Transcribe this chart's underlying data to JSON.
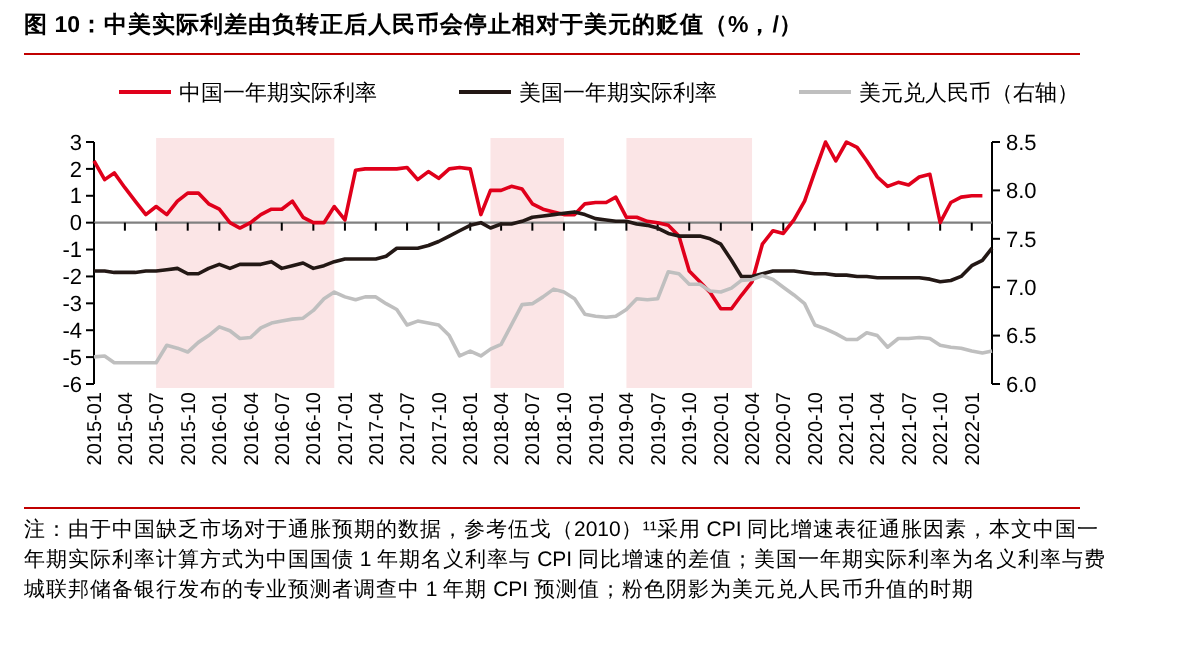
{
  "chart_data": {
    "type": "line",
    "title": "图 10：中美实际利差由负转正后人民币会停止相对于美元的贬值（%，/）",
    "x": [
      "2015-01",
      "2015-02",
      "2015-03",
      "2015-04",
      "2015-05",
      "2015-06",
      "2015-07",
      "2015-08",
      "2015-09",
      "2015-10",
      "2015-11",
      "2015-12",
      "2016-01",
      "2016-02",
      "2016-03",
      "2016-04",
      "2016-05",
      "2016-06",
      "2016-07",
      "2016-08",
      "2016-09",
      "2016-10",
      "2016-11",
      "2016-12",
      "2017-01",
      "2017-02",
      "2017-03",
      "2017-04",
      "2017-05",
      "2017-06",
      "2017-07",
      "2017-08",
      "2017-09",
      "2017-10",
      "2017-11",
      "2017-12",
      "2018-01",
      "2018-02",
      "2018-03",
      "2018-04",
      "2018-05",
      "2018-06",
      "2018-07",
      "2018-08",
      "2018-09",
      "2018-10",
      "2018-11",
      "2018-12",
      "2019-01",
      "2019-02",
      "2019-03",
      "2019-04",
      "2019-05",
      "2019-06",
      "2019-07",
      "2019-08",
      "2019-09",
      "2019-10",
      "2019-11",
      "2019-12",
      "2020-01",
      "2020-02",
      "2020-03",
      "2020-04",
      "2020-05",
      "2020-06",
      "2020-07",
      "2020-08",
      "2020-09",
      "2020-10",
      "2020-11",
      "2020-12",
      "2021-01",
      "2021-02",
      "2021-03",
      "2021-04",
      "2021-05",
      "2021-06",
      "2021-07",
      "2021-08",
      "2021-09",
      "2021-10",
      "2021-11",
      "2021-12",
      "2022-01",
      "2022-02",
      "2022-03"
    ],
    "series": [
      {
        "name": "中国一年期实际利率",
        "color": "#e0001b",
        "values": [
          2.3,
          1.6,
          1.85,
          1.3,
          0.8,
          0.3,
          0.6,
          0.3,
          0.8,
          1.1,
          1.1,
          0.7,
          0.5,
          0,
          -0.2,
          0,
          0.3,
          0.5,
          0.5,
          0.8,
          0.2,
          0,
          0,
          0.6,
          0.1,
          1.95,
          2,
          2,
          2,
          2,
          2.05,
          1.6,
          1.9,
          1.65,
          2,
          2.05,
          2,
          0.3,
          1.2,
          1.2,
          1.35,
          1.25,
          0.7,
          0.5,
          0.4,
          0.3,
          0.3,
          0.7,
          0.75,
          0.75,
          0.95,
          0.2,
          0.2,
          0.05,
          0,
          -0.1,
          -0.5,
          -1.8,
          -2.2,
          -2.6,
          -3.2,
          -3.2,
          -2.7,
          -2.2,
          -0.8,
          -0.3,
          -0.4,
          0.1,
          0.8,
          1.9,
          3,
          2.3,
          3,
          2.8,
          2.3,
          1.7,
          1.35,
          1.5,
          1.4,
          1.7,
          1.8,
          0,
          0.75,
          0.95,
          1,
          1,
          null
        ]
      },
      {
        "name": "美国一年期实际利率",
        "color": "#231815",
        "values": [
          -1.8,
          -1.8,
          -1.85,
          -1.85,
          -1.85,
          -1.8,
          -1.8,
          -1.75,
          -1.7,
          -1.9,
          -1.9,
          -1.7,
          -1.55,
          -1.7,
          -1.55,
          -1.55,
          -1.55,
          -1.45,
          -1.7,
          -1.6,
          -1.5,
          -1.7,
          -1.6,
          -1.45,
          -1.35,
          -1.35,
          -1.35,
          -1.35,
          -1.25,
          -0.95,
          -0.95,
          -0.95,
          -0.85,
          -0.7,
          -0.5,
          -0.3,
          -0.1,
          0,
          -0.2,
          -0.05,
          -0.05,
          0.05,
          0.2,
          0.25,
          0.3,
          0.35,
          0.4,
          0.3,
          0.15,
          0.1,
          0.05,
          0.05,
          -0.05,
          -0.1,
          -0.2,
          -0.4,
          -0.5,
          -0.5,
          -0.5,
          -0.6,
          -0.8,
          -1.4,
          -2,
          -2,
          -1.9,
          -1.8,
          -1.8,
          -1.8,
          -1.85,
          -1.9,
          -1.9,
          -1.95,
          -1.95,
          -2,
          -2,
          -2.05,
          -2.05,
          -2.05,
          -2.05,
          -2.05,
          -2.1,
          -2.2,
          -2.15,
          -2,
          -1.6,
          -1.4,
          -0.95
        ]
      },
      {
        "name": "美元兑人民币（右轴）",
        "color": "#bfbfbf",
        "axis": "y2",
        "values": [
          6.28,
          6.29,
          6.22,
          6.22,
          6.22,
          6.22,
          6.22,
          6.4,
          6.37,
          6.33,
          6.43,
          6.5,
          6.59,
          6.55,
          6.47,
          6.48,
          6.58,
          6.63,
          6.65,
          6.67,
          6.68,
          6.76,
          6.88,
          6.95,
          6.9,
          6.87,
          6.9,
          6.9,
          6.83,
          6.77,
          6.61,
          6.65,
          6.63,
          6.61,
          6.5,
          6.29,
          6.34,
          6.29,
          6.36,
          6.41,
          6.61,
          6.82,
          6.83,
          6.9,
          6.98,
          6.95,
          6.88,
          6.72,
          6.7,
          6.69,
          6.7,
          6.77,
          6.88,
          6.87,
          6.88,
          7.16,
          7.14,
          7.03,
          7.03,
          6.96,
          6.95,
          6.99,
          7.07,
          7.08,
          7.12,
          7.08,
          7,
          6.92,
          6.83,
          6.61,
          6.57,
          6.52,
          6.46,
          6.46,
          6.53,
          6.5,
          6.38,
          6.47,
          6.47,
          6.48,
          6.47,
          6.4,
          6.38,
          6.37,
          6.34,
          6.32,
          6.34
        ]
      }
    ],
    "xlim": [
      "2015-01",
      "2022-03"
    ],
    "xticks": [
      "2015-01",
      "2015-04",
      "2015-07",
      "2015-10",
      "2016-01",
      "2016-04",
      "2016-07",
      "2016-10",
      "2017-01",
      "2017-04",
      "2017-07",
      "2017-10",
      "2018-01",
      "2018-04",
      "2018-07",
      "2018-10",
      "2019-01",
      "2019-04",
      "2019-07",
      "2019-10",
      "2020-01",
      "2020-04",
      "2020-07",
      "2020-10",
      "2021-01",
      "2021-04",
      "2021-07",
      "2021-10",
      "2022-01"
    ],
    "ylim": [
      -6,
      3
    ],
    "yticks": [
      -6,
      -5,
      -4,
      -3,
      -2,
      -1,
      0,
      1,
      2,
      3
    ],
    "y2lim": [
      6,
      8.5
    ],
    "y2ticks": [
      {
        "value": 6,
        "label": "6.0"
      },
      {
        "value": 6.5,
        "label": "6.5"
      },
      {
        "value": 7,
        "label": "7.0"
      },
      {
        "value": 7.5,
        "label": "7.5"
      },
      {
        "value": 8,
        "label": "8.0"
      },
      {
        "value": 8.5,
        "label": "8.5"
      }
    ],
    "bands": [
      {
        "axis": "x",
        "from": "2015-07",
        "to": "2016-12",
        "color": "#fbe5e6"
      },
      {
        "axis": "x",
        "from": "2018-03",
        "to": "2018-10",
        "color": "#fbe5e6"
      },
      {
        "axis": "x",
        "from": "2019-04",
        "to": "2020-04",
        "color": "#fbe5e6"
      }
    ],
    "legend": "top",
    "line_style": "solid",
    "marker": "none",
    "annotations": [
      "注：由于中国缺乏市场对于通胀预期的数据，参考伍戈（2010）¹¹采用 CPI 同比增速表征通胀因素，本文中国一年期实际利率计算方式为中国国债 1 年期名义利率与 CPI 同比增速的差值；美国一年期实际利率为名义利率与费城联邦储备银行发布的专业预测者调查中 1 年期 CPI 预测值；粉色阴影为美元兑人民币升值的时期"
    ]
  }
}
